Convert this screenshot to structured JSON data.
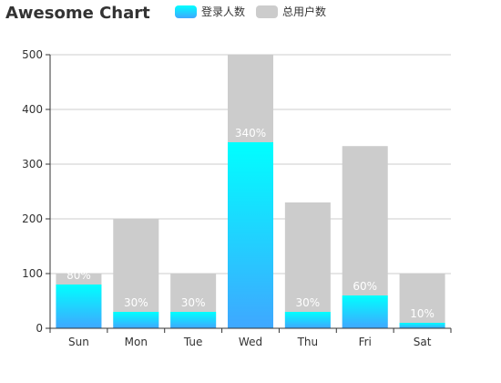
{
  "chart_data": {
    "type": "bar",
    "title": "Awesome Chart",
    "categories": [
      "Sun",
      "Mon",
      "Tue",
      "Wed",
      "Thu",
      "Fri",
      "Sat"
    ],
    "series": [
      {
        "name": "登录人数",
        "values": [
          80,
          30,
          30,
          340,
          30,
          60,
          10
        ],
        "labels": [
          "80%",
          "30%",
          "30%",
          "340%",
          "30%",
          "60%",
          "10%"
        ]
      },
      {
        "name": "总用户数",
        "values": [
          100,
          200,
          100,
          500,
          230,
          333,
          100
        ]
      }
    ],
    "ylim": [
      0,
      500
    ],
    "yticks": [
      0,
      100,
      200,
      300,
      400,
      500
    ],
    "grid": true,
    "legend": "top",
    "colors": {
      "gradient_top": "#00FFFF",
      "gradient_bottom": "#3FA7FF",
      "total": "#CCCCCC",
      "grid": "#CCCCCC",
      "axis": "#333333"
    }
  }
}
